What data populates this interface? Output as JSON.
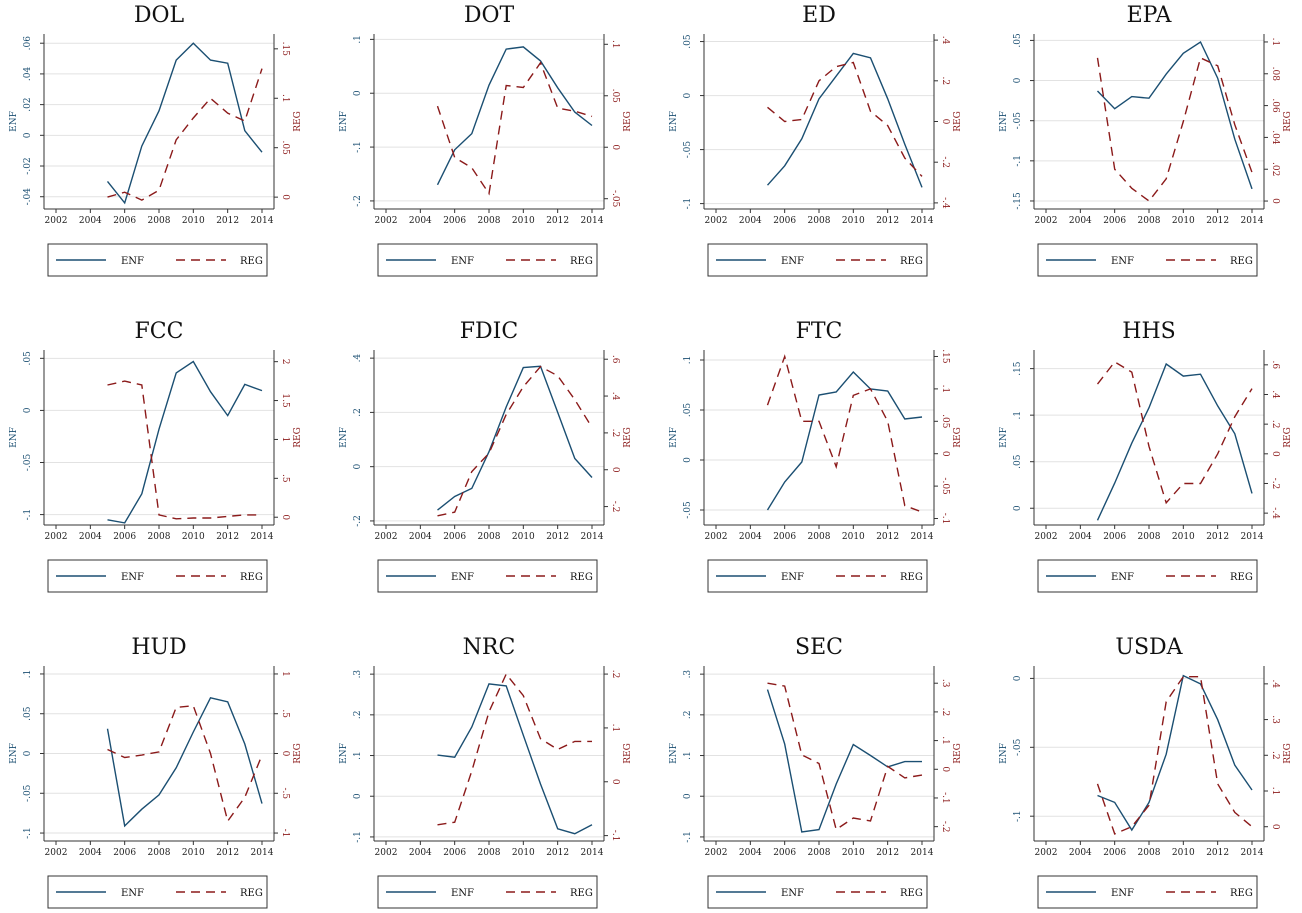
{
  "colors": {
    "enf": "#1b4f72",
    "reg": "#8b1a1a",
    "grid": "#e2e2e2",
    "axis": "#333333"
  },
  "legend": {
    "enf_label": "ENF",
    "reg_label": "REG",
    "placement": "bottom"
  },
  "axis_labels": {
    "left": "ENF",
    "right": "REG"
  },
  "chart_data": [
    {
      "type": "line",
      "title": "DOL",
      "x": [
        2005,
        2006,
        2007,
        2008,
        2009,
        2010,
        2011,
        2012,
        2013,
        2014
      ],
      "xticks": [
        2002,
        2004,
        2006,
        2008,
        2010,
        2012,
        2014
      ],
      "xlim": [
        2001.3,
        2014.7
      ],
      "ylabel": "ENF",
      "y2label": "REG",
      "ylim": [
        -0.048,
        0.066
      ],
      "yticks": [
        -0.04,
        -0.02,
        0,
        0.02,
        0.04,
        0.06
      ],
      "yticklabels": [
        "-.04",
        "-.02",
        "0",
        ".02",
        ".04",
        ".06"
      ],
      "y2lim": [
        -0.012,
        0.165
      ],
      "y2ticks": [
        0,
        0.05,
        0.1,
        0.15
      ],
      "y2ticklabels": [
        "0",
        ".05",
        ".1",
        ".15"
      ],
      "series": [
        {
          "name": "ENF",
          "axis": "left",
          "values": [
            -0.03,
            -0.044,
            -0.007,
            0.016,
            0.049,
            0.06,
            0.049,
            0.047,
            0.003,
            -0.011
          ]
        },
        {
          "name": "REG",
          "axis": "right",
          "values": [
            0.0,
            0.005,
            -0.003,
            0.007,
            0.058,
            0.08,
            0.1,
            0.085,
            0.077,
            0.13
          ]
        }
      ]
    },
    {
      "type": "line",
      "title": "DOT",
      "x": [
        2005,
        2006,
        2007,
        2008,
        2009,
        2010,
        2011,
        2012,
        2013,
        2014
      ],
      "xticks": [
        2002,
        2004,
        2006,
        2008,
        2010,
        2012,
        2014
      ],
      "xlim": [
        2001.3,
        2014.7
      ],
      "ylabel": "ENF",
      "y2label": "REG",
      "ylim": [
        -0.215,
        0.11
      ],
      "yticks": [
        -0.2,
        -0.1,
        0,
        0.1
      ],
      "yticklabels": [
        "-.2",
        "-.1",
        "0",
        ".1"
      ],
      "y2lim": [
        -0.06,
        0.11
      ],
      "y2ticks": [
        -0.05,
        0,
        0.05,
        0.1
      ],
      "y2ticklabels": [
        "-.05",
        "0",
        ".05",
        ".1"
      ],
      "series": [
        {
          "name": "ENF",
          "axis": "left",
          "values": [
            -0.17,
            -0.105,
            -0.075,
            0.015,
            0.082,
            0.086,
            0.06,
            0.01,
            -0.035,
            -0.06
          ]
        },
        {
          "name": "REG",
          "axis": "right",
          "values": [
            0.04,
            -0.01,
            -0.02,
            -0.045,
            0.06,
            0.058,
            0.082,
            0.038,
            0.035,
            0.03
          ]
        }
      ]
    },
    {
      "type": "line",
      "title": "ED",
      "x": [
        2005,
        2006,
        2007,
        2008,
        2009,
        2010,
        2011,
        2012,
        2013,
        2014
      ],
      "xticks": [
        2002,
        2004,
        2006,
        2008,
        2010,
        2012,
        2014
      ],
      "xlim": [
        2001.3,
        2014.7
      ],
      "ylabel": "ENF",
      "y2label": "REG",
      "ylim": [
        -0.105,
        0.057
      ],
      "yticks": [
        -0.1,
        -0.05,
        0,
        0.05
      ],
      "yticklabels": [
        "-.1",
        "-.05",
        "0",
        ".05"
      ],
      "y2lim": [
        -0.43,
        0.43
      ],
      "y2ticks": [
        -0.4,
        -0.2,
        0,
        0.2,
        0.4
      ],
      "y2ticklabels": [
        "-.4",
        "-.2",
        "0",
        ".2",
        ".4"
      ],
      "series": [
        {
          "name": "ENF",
          "axis": "left",
          "values": [
            -0.083,
            -0.065,
            -0.04,
            -0.003,
            0.018,
            0.039,
            0.035,
            -0.003,
            -0.045,
            -0.085
          ]
        },
        {
          "name": "REG",
          "axis": "right",
          "values": [
            0.07,
            0.0,
            0.01,
            0.2,
            0.27,
            0.29,
            0.05,
            -0.02,
            -0.18,
            -0.27
          ]
        }
      ]
    },
    {
      "type": "line",
      "title": "EPA",
      "x": [
        2005,
        2006,
        2007,
        2008,
        2009,
        2010,
        2011,
        2012,
        2013,
        2014
      ],
      "xticks": [
        2002,
        2004,
        2006,
        2008,
        2010,
        2012,
        2014
      ],
      "xlim": [
        2001.3,
        2014.7
      ],
      "ylabel": "ENF",
      "y2label": "REG",
      "ylim": [
        -0.16,
        0.058
      ],
      "yticks": [
        -0.15,
        -0.1,
        -0.05,
        0,
        0.05
      ],
      "yticklabels": [
        "-.15",
        "-.1",
        "-.05",
        "0",
        ".05"
      ],
      "y2lim": [
        -0.005,
        0.105
      ],
      "y2ticks": [
        0,
        0.02,
        0.04,
        0.06,
        0.08,
        0.1
      ],
      "y2ticklabels": [
        "0",
        ".02",
        ".04",
        ".06",
        ".08",
        ".1"
      ],
      "series": [
        {
          "name": "ENF",
          "axis": "left",
          "values": [
            -0.013,
            -0.035,
            -0.02,
            -0.022,
            0.008,
            0.034,
            0.048,
            0.003,
            -0.073,
            -0.135
          ]
        },
        {
          "name": "REG",
          "axis": "right",
          "values": [
            0.09,
            0.02,
            0.008,
            0.0,
            0.014,
            0.05,
            0.09,
            0.085,
            0.048,
            0.018
          ]
        }
      ]
    },
    {
      "type": "line",
      "title": "FCC",
      "x": [
        2005,
        2006,
        2007,
        2008,
        2009,
        2010,
        2011,
        2012,
        2013,
        2014
      ],
      "xticks": [
        2002,
        2004,
        2006,
        2008,
        2010,
        2012,
        2014
      ],
      "xlim": [
        2001.3,
        2014.7
      ],
      "ylabel": "ENF",
      "y2label": "REG",
      "ylim": [
        -0.11,
        0.058
      ],
      "yticks": [
        -0.1,
        -0.05,
        0,
        0.05
      ],
      "yticklabels": [
        "-.1",
        "-.05",
        "0",
        ".05"
      ],
      "y2lim": [
        -0.1,
        2.15
      ],
      "y2ticks": [
        0,
        0.5,
        1,
        1.5,
        2
      ],
      "y2ticklabels": [
        "0",
        ".5",
        "1",
        "1.5",
        "2"
      ],
      "series": [
        {
          "name": "ENF",
          "axis": "left",
          "values": [
            -0.105,
            -0.108,
            -0.08,
            -0.018,
            0.036,
            0.047,
            0.018,
            -0.005,
            0.025,
            0.019
          ]
        },
        {
          "name": "REG",
          "axis": "right",
          "values": [
            1.7,
            1.75,
            1.7,
            0.03,
            -0.02,
            -0.01,
            -0.01,
            0.01,
            0.03,
            0.03
          ]
        }
      ]
    },
    {
      "type": "line",
      "title": "FDIC",
      "x": [
        2005,
        2006,
        2007,
        2008,
        2009,
        2010,
        2011,
        2012,
        2013,
        2014
      ],
      "xticks": [
        2002,
        2004,
        2006,
        2008,
        2010,
        2012,
        2014
      ],
      "xlim": [
        2001.3,
        2014.7
      ],
      "ylabel": "ENF",
      "y2label": "REG",
      "ylim": [
        -0.215,
        0.43
      ],
      "yticks": [
        -0.2,
        0,
        0.2,
        0.4
      ],
      "yticklabels": [
        "-.2",
        "0",
        ".2",
        ".4"
      ],
      "y2lim": [
        -0.3,
        0.65
      ],
      "y2ticks": [
        -0.2,
        0,
        0.2,
        0.4,
        0.6
      ],
      "y2ticklabels": [
        "-.2",
        "0",
        ".2",
        ".4",
        ".6"
      ],
      "series": [
        {
          "name": "ENF",
          "axis": "left",
          "values": [
            -0.16,
            -0.11,
            -0.08,
            0.055,
            0.22,
            0.365,
            0.37,
            0.2,
            0.03,
            -0.04
          ]
        },
        {
          "name": "REG",
          "axis": "right",
          "values": [
            -0.25,
            -0.23,
            -0.01,
            0.09,
            0.3,
            0.45,
            0.56,
            0.51,
            0.38,
            0.23
          ]
        }
      ]
    },
    {
      "type": "line",
      "title": "FTC",
      "x": [
        2005,
        2006,
        2007,
        2008,
        2009,
        2010,
        2011,
        2012,
        2013,
        2014
      ],
      "xticks": [
        2002,
        2004,
        2006,
        2008,
        2010,
        2012,
        2014
      ],
      "xlim": [
        2001.3,
        2014.7
      ],
      "ylabel": "ENF",
      "y2label": "REG",
      "ylim": [
        -0.065,
        0.11
      ],
      "yticks": [
        -0.05,
        0,
        0.05,
        0.1
      ],
      "yticklabels": [
        "-.05",
        "0",
        ".05",
        ".1"
      ],
      "y2lim": [
        -0.11,
        0.16
      ],
      "y2ticks": [
        -0.1,
        -0.05,
        0,
        0.05,
        0.1,
        0.15
      ],
      "y2ticklabels": [
        "-.1",
        "-.05",
        "0",
        ".05",
        ".1",
        ".15"
      ],
      "series": [
        {
          "name": "ENF",
          "axis": "left",
          "values": [
            -0.05,
            -0.022,
            -0.002,
            0.065,
            0.068,
            0.088,
            0.071,
            0.069,
            0.041,
            0.043
          ]
        },
        {
          "name": "REG",
          "axis": "right",
          "values": [
            0.075,
            0.15,
            0.05,
            0.05,
            -0.02,
            0.09,
            0.1,
            0.05,
            -0.08,
            -0.09
          ]
        }
      ]
    },
    {
      "type": "line",
      "title": "HHS",
      "x": [
        2005,
        2006,
        2007,
        2008,
        2009,
        2010,
        2011,
        2012,
        2013,
        2014
      ],
      "xticks": [
        2002,
        2004,
        2006,
        2008,
        2010,
        2012,
        2014
      ],
      "xlim": [
        2001.3,
        2014.7
      ],
      "ylabel": "ENF",
      "y2label": "REG",
      "ylim": [
        -0.018,
        0.17
      ],
      "yticks": [
        0,
        0.05,
        0.1,
        0.15
      ],
      "yticklabels": [
        "0",
        ".05",
        ".1",
        ".15"
      ],
      "y2lim": [
        -0.48,
        0.7
      ],
      "y2ticks": [
        -0.4,
        -0.2,
        0,
        0.2,
        0.4,
        0.6
      ],
      "y2ticklabels": [
        "-.4",
        "-.2",
        "0",
        ".2",
        ".4",
        ".6"
      ],
      "series": [
        {
          "name": "ENF",
          "axis": "left",
          "values": [
            -0.013,
            0.027,
            0.07,
            0.108,
            0.155,
            0.142,
            0.144,
            0.11,
            0.08,
            0.016
          ]
        },
        {
          "name": "REG",
          "axis": "right",
          "values": [
            0.47,
            0.62,
            0.55,
            0.05,
            -0.33,
            -0.2,
            -0.2,
            0.0,
            0.25,
            0.44
          ]
        }
      ]
    },
    {
      "type": "line",
      "title": "HUD",
      "x": [
        2005,
        2006,
        2007,
        2008,
        2009,
        2010,
        2011,
        2012,
        2013,
        2014
      ],
      "xticks": [
        2002,
        2004,
        2006,
        2008,
        2010,
        2012,
        2014
      ],
      "xlim": [
        2001.3,
        2014.7
      ],
      "ylabel": "ENF",
      "y2label": "REG",
      "ylim": [
        -0.11,
        0.11
      ],
      "yticks": [
        -0.1,
        -0.05,
        0,
        0.05,
        0.1
      ],
      "yticklabels": [
        "-.1",
        "-.05",
        "0",
        ".05",
        ".1"
      ],
      "y2lim": [
        -1.1,
        1.1
      ],
      "y2ticks": [
        -1,
        -0.5,
        0,
        0.5,
        1
      ],
      "y2ticklabels": [
        "-1",
        "-.5",
        "0",
        ".5",
        "1"
      ],
      "series": [
        {
          "name": "ENF",
          "axis": "left",
          "values": [
            0.031,
            -0.091,
            -0.07,
            -0.052,
            -0.018,
            0.027,
            0.07,
            0.065,
            0.012,
            -0.063
          ]
        },
        {
          "name": "REG",
          "axis": "right",
          "values": [
            0.05,
            -0.05,
            -0.02,
            0.02,
            0.58,
            0.6,
            0.0,
            -0.85,
            -0.55,
            -0.02
          ]
        }
      ]
    },
    {
      "type": "line",
      "title": "NRC",
      "x": [
        2005,
        2006,
        2007,
        2008,
        2009,
        2010,
        2011,
        2012,
        2013,
        2014
      ],
      "xticks": [
        2002,
        2004,
        2006,
        2008,
        2010,
        2012,
        2014
      ],
      "xlim": [
        2001.3,
        2014.7
      ],
      "ylabel": "ENF",
      "y2label": "REG",
      "ylim": [
        -0.11,
        0.32
      ],
      "yticks": [
        -0.1,
        0,
        0.1,
        0.2,
        0.3
      ],
      "yticklabels": [
        "-.1",
        "0",
        ".1",
        ".2",
        ".3"
      ],
      "y2lim": [
        -0.11,
        0.215
      ],
      "y2ticks": [
        -0.1,
        0,
        0.1,
        0.2
      ],
      "y2ticklabels": [
        "-.1",
        "0",
        ".1",
        ".2"
      ],
      "series": [
        {
          "name": "ENF",
          "axis": "left",
          "values": [
            0.101,
            0.096,
            0.17,
            0.276,
            0.271,
            0.15,
            0.03,
            -0.08,
            -0.092,
            -0.07
          ]
        },
        {
          "name": "REG",
          "axis": "right",
          "values": [
            -0.08,
            -0.075,
            0.02,
            0.13,
            0.2,
            0.16,
            0.08,
            0.06,
            0.075,
            0.075
          ]
        }
      ]
    },
    {
      "type": "line",
      "title": "SEC",
      "x": [
        2005,
        2006,
        2007,
        2008,
        2009,
        2010,
        2011,
        2012,
        2013,
        2014
      ],
      "xticks": [
        2002,
        2004,
        2006,
        2008,
        2010,
        2012,
        2014
      ],
      "xlim": [
        2001.3,
        2014.7
      ],
      "ylabel": "ENF",
      "y2label": "REG",
      "ylim": [
        -0.11,
        0.32
      ],
      "yticks": [
        -0.1,
        0,
        0.1,
        0.2,
        0.3
      ],
      "yticklabels": [
        "-.1",
        "0",
        ".1",
        ".2",
        ".3"
      ],
      "y2lim": [
        -0.25,
        0.36
      ],
      "y2ticks": [
        -0.2,
        -0.1,
        0,
        0.1,
        0.2,
        0.3
      ],
      "y2ticklabels": [
        "-.2",
        "-.1",
        "0",
        ".1",
        ".2",
        ".3"
      ],
      "series": [
        {
          "name": "ENF",
          "axis": "left",
          "values": [
            0.262,
            0.128,
            -0.088,
            -0.082,
            0.03,
            0.127,
            0.1,
            0.072,
            0.085,
            0.085
          ]
        },
        {
          "name": "REG",
          "axis": "right",
          "values": [
            0.3,
            0.29,
            0.05,
            0.02,
            -0.21,
            -0.17,
            -0.18,
            0.01,
            -0.03,
            -0.02
          ]
        }
      ]
    },
    {
      "type": "line",
      "title": "USDA",
      "x": [
        2005,
        2006,
        2007,
        2008,
        2009,
        2010,
        2011,
        2012,
        2013,
        2014
      ],
      "xticks": [
        2002,
        2004,
        2006,
        2008,
        2010,
        2012,
        2014
      ],
      "xlim": [
        2001.3,
        2014.7
      ],
      "ylabel": "ENF",
      "y2label": "REG",
      "ylim": [
        -0.118,
        0.009
      ],
      "yticks": [
        -0.1,
        -0.05,
        0
      ],
      "yticklabels": [
        "-.1",
        "-.05",
        "0"
      ],
      "y2lim": [
        -0.04,
        0.45
      ],
      "y2ticks": [
        0,
        0.1,
        0.2,
        0.3,
        0.4
      ],
      "y2ticklabels": [
        "0",
        ".1",
        ".2",
        ".3",
        ".4"
      ],
      "series": [
        {
          "name": "ENF",
          "axis": "left",
          "values": [
            -0.085,
            -0.09,
            -0.11,
            -0.09,
            -0.055,
            0.002,
            -0.004,
            -0.03,
            -0.063,
            -0.081
          ]
        },
        {
          "name": "REG",
          "axis": "right",
          "values": [
            0.12,
            -0.02,
            0.0,
            0.06,
            0.35,
            0.42,
            0.42,
            0.12,
            0.04,
            0.0
          ]
        }
      ]
    }
  ]
}
